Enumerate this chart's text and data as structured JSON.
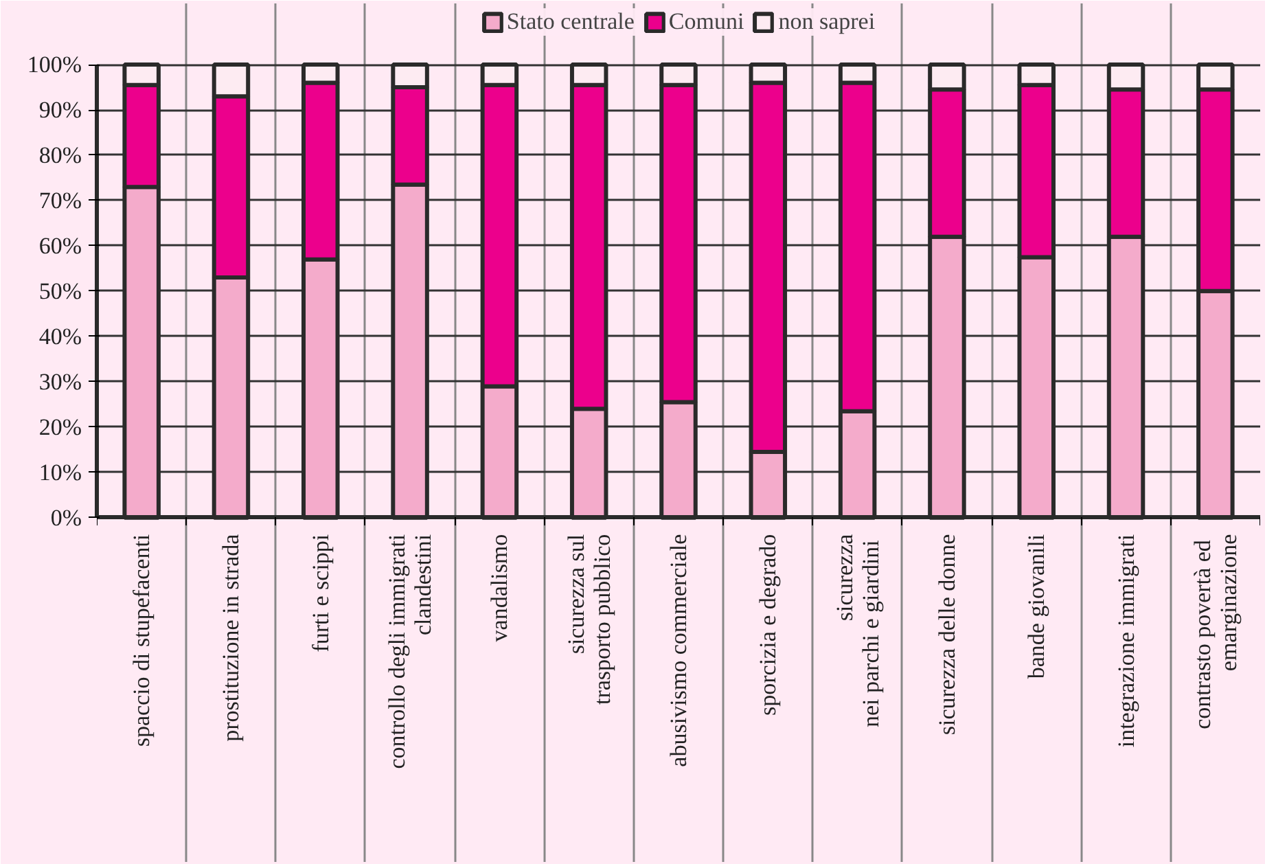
{
  "chart_data": {
    "type": "bar",
    "stacked": true,
    "categories": [
      "spaccio di stupefacenti",
      "prostituzione in strada",
      "furti e scippi",
      "controllo degli immigrati\nclandestini",
      "vandalismo",
      "sicurezza sul\ntrasporto pubblico",
      "abusivismo commerciale",
      "sporcizia e degrado",
      "sicurezza\nnei parchi e  giardini",
      "sicurezza delle donne",
      "bande giovanili",
      "integrazione immigrati",
      "contrasto  povertà ed\nemarginazione"
    ],
    "series": [
      {
        "name": "Stato centrale",
        "color": "#f4abcb",
        "values": [
          73,
          53,
          57,
          73.5,
          29,
          24,
          25.5,
          14.5,
          23.5,
          62,
          57.5,
          62,
          50
        ]
      },
      {
        "name": "Comuni",
        "color": "#ec008c",
        "values": [
          22.5,
          40,
          39,
          21.5,
          66.5,
          71.5,
          70,
          81.5,
          72.5,
          32.5,
          38,
          32.5,
          44.5
        ]
      },
      {
        "name": "non saprei",
        "color": "#fdebf2",
        "values": [
          4.5,
          7,
          4,
          5,
          4.5,
          4.5,
          4.5,
          4,
          4,
          5.5,
          4.5,
          5.5,
          5.5
        ]
      }
    ],
    "ylim": [
      0,
      100
    ],
    "yticks": [
      {
        "value": 0,
        "label": "0%"
      },
      {
        "value": 10,
        "label": "10%"
      },
      {
        "value": 20,
        "label": "20%"
      },
      {
        "value": 30,
        "label": "30%"
      },
      {
        "value": 40,
        "label": "40%"
      },
      {
        "value": 50,
        "label": "50%"
      },
      {
        "value": 60,
        "label": "60%"
      },
      {
        "value": 70,
        "label": "70%"
      },
      {
        "value": 80,
        "label": "80%"
      },
      {
        "value": 90,
        "label": "90%"
      },
      {
        "value": 100,
        "label": "100%"
      }
    ],
    "grid": true,
    "legend": "top"
  }
}
